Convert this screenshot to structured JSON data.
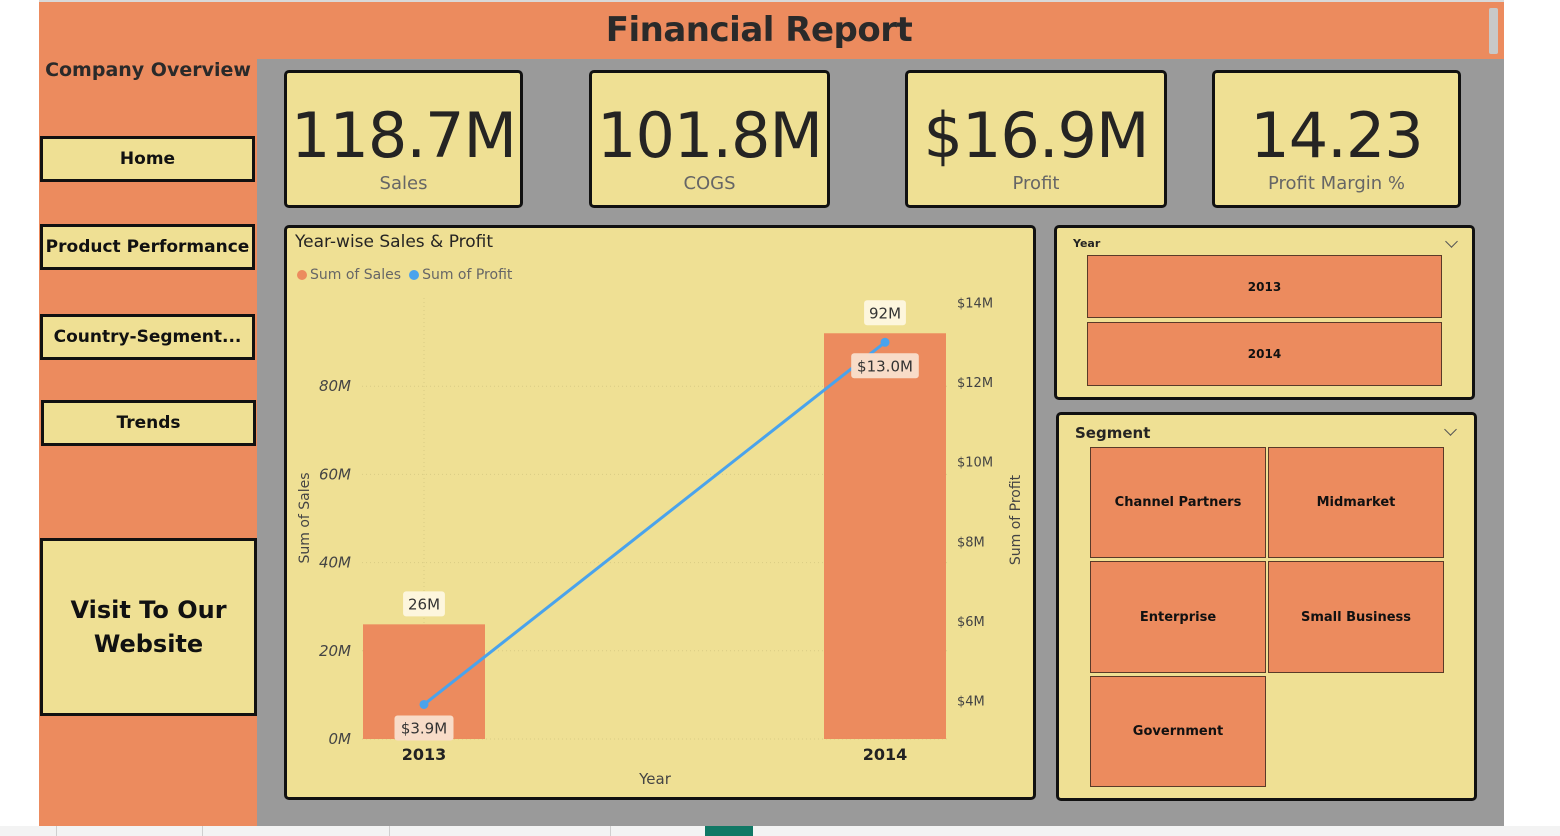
{
  "header": {
    "title": "Financial Report"
  },
  "sidebar": {
    "title": "Company Overview",
    "buttons": [
      "Home",
      "Product Performance",
      "Country-Segment...",
      "Trends"
    ],
    "website_button": "Visit To Our Website"
  },
  "kpis": [
    {
      "value": "118.7M",
      "label": "Sales"
    },
    {
      "value": "101.8M",
      "label": "COGS"
    },
    {
      "value": "$16.9M",
      "label": "Profit"
    },
    {
      "value": "14.23",
      "label": "Profit Margin %"
    }
  ],
  "chart": {
    "title": "Year-wise Sales & Profit",
    "legend": [
      "Sum of  Sales",
      "Sum of Profit"
    ],
    "xlabel": "Year",
    "ylabel_left": "Sum of Sales",
    "ylabel_right": "Sum of Profit"
  },
  "chart_data": {
    "type": "bar",
    "categories": [
      "2013",
      "2014"
    ],
    "series": [
      {
        "name": "Sum of  Sales",
        "type": "bar",
        "axis": "left",
        "values": [
          26,
          92
        ],
        "labels": [
          "26M",
          "92M"
        ]
      },
      {
        "name": "Sum of Profit",
        "type": "line",
        "axis": "right",
        "values": [
          3.9,
          13.0
        ],
        "labels": [
          "$3.9M",
          "$13.0M"
        ]
      }
    ],
    "xlabel": "Year",
    "ylabel": "Sum of Sales",
    "ylabel_right": "Sum of Profit",
    "left_ticks": [
      0,
      20,
      40,
      60,
      80
    ],
    "left_tick_labels": [
      "0M",
      "20M",
      "40M",
      "60M",
      "80M"
    ],
    "right_ticks": [
      4,
      6,
      8,
      10,
      12,
      14
    ],
    "right_tick_labels": [
      "$4M",
      "$6M",
      "$8M",
      "$10M",
      "$12M",
      "$14M"
    ],
    "ylim": [
      0,
      92
    ],
    "ylim_right": [
      2.1,
      14.5
    ],
    "legend_position": "top-left",
    "colors": {
      "sales": "#ec8b5e",
      "profit": "#4aa3ec"
    }
  },
  "slicers": {
    "year": {
      "title": "Year",
      "options": [
        "2013",
        "2014"
      ]
    },
    "segment": {
      "title": "Segment",
      "options": [
        "Channel Partners",
        "Midmarket",
        "Enterprise",
        "Small Business",
        "Government"
      ]
    }
  }
}
